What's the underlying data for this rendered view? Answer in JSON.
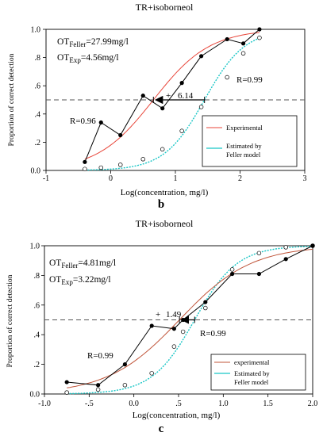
{
  "colors": {
    "experimental": "#e8463a",
    "estimated": "#19c6c6",
    "observed": "#000000",
    "reference": "#555555"
  },
  "chart_data": [
    {
      "type": "line",
      "title": "TR+isoborneol",
      "panel_label": "b",
      "xlabel": "Log(concentration, mg/l)",
      "ylabel": "Proportion of correct detection",
      "xlim": [
        -1,
        3
      ],
      "ylim": [
        0.0,
        1.0
      ],
      "xtick_labels": [
        "-1",
        "0",
        "1",
        "2",
        "3"
      ],
      "ytick_labels": [
        "0.0",
        ".2",
        ".4",
        ".6",
        ".8",
        "1.0"
      ],
      "grid": false,
      "legend_position": "bottom-right",
      "legend": [
        "Experimental",
        "Estimated by Feller model"
      ],
      "reference_line_y": 0.5,
      "annotations": {
        "ot_feller": "OT",
        "ot_feller_sub": "Feller",
        "ot_feller_val": "=27.99mg/l",
        "ot_exp": "OT",
        "ot_exp_sub": "Exp",
        "ot_exp_val": "=4.56mg/l",
        "r_exp": "R=0.96",
        "r_feller": "R=0.99",
        "threshold_diff": "6.14"
      },
      "observed": {
        "x": [
          -0.4,
          -0.15,
          0.15,
          0.5,
          0.8,
          1.1,
          1.4,
          1.8,
          2.05,
          2.3
        ],
        "y": [
          0.06,
          0.34,
          0.25,
          0.53,
          0.44,
          0.62,
          0.81,
          0.93,
          0.9,
          1.0
        ]
      },
      "feller_points": {
        "x": [
          -0.4,
          -0.15,
          0.15,
          0.5,
          0.8,
          1.1,
          1.4,
          1.8,
          2.05,
          2.3
        ],
        "y": [
          0.01,
          0.02,
          0.04,
          0.08,
          0.15,
          0.28,
          0.45,
          0.66,
          0.83,
          0.94
        ]
      },
      "experimental_curve": {
        "x0": 0.66,
        "k": 2.3
      },
      "feller_curve": {
        "x0": 1.45,
        "k": 3.2
      }
    },
    {
      "type": "line",
      "title": "TR+isoborneol",
      "panel_label": "c",
      "xlabel": "Log(concentration, mg/l)",
      "ylabel": "Proportion of correct detection",
      "xlim": [
        -1.0,
        2.0
      ],
      "ylim": [
        0.0,
        1.0
      ],
      "xtick_labels": [
        "-1.0",
        "-.5",
        "0.0",
        ".5",
        "1.0",
        "1.5",
        "2.0"
      ],
      "ytick_labels": [
        "0.0",
        ".2",
        ".4",
        ".6",
        ".8",
        "1.0"
      ],
      "grid": false,
      "legend_position": "bottom-right",
      "legend": [
        "experimental",
        "Estimated by Feller model"
      ],
      "reference_line_y": 0.5,
      "annotations": {
        "ot_feller": "OT",
        "ot_feller_sub": "Feller",
        "ot_feller_val": "=4.81mg/l",
        "ot_exp": "OT",
        "ot_exp_sub": "Exp",
        "ot_exp_val": "=3.22mg/l",
        "r_exp": "R=0.99",
        "r_feller": "R=0.99",
        "threshold_diff": "1.49"
      },
      "observed": {
        "x": [
          -0.75,
          -0.4,
          -0.1,
          0.2,
          0.45,
          0.55,
          0.8,
          1.1,
          1.4,
          1.7,
          2.0
        ],
        "y": [
          0.08,
          0.06,
          0.2,
          0.46,
          0.44,
          0.5,
          0.62,
          0.81,
          0.81,
          0.91,
          1.0
        ]
      },
      "feller_points": {
        "x": [
          -0.75,
          -0.4,
          -0.1,
          0.2,
          0.45,
          0.55,
          0.8,
          1.1,
          1.4,
          1.7,
          2.0
        ],
        "y": [
          0.01,
          0.03,
          0.06,
          0.14,
          0.32,
          0.42,
          0.58,
          0.84,
          0.95,
          0.99,
          1.0
        ]
      },
      "experimental_curve": {
        "x0": 0.51,
        "k": 2.5
      },
      "feller_curve": {
        "x0": 0.68,
        "k": 4.2
      }
    }
  ]
}
